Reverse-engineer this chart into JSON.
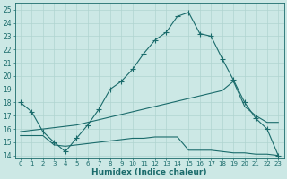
{
  "xlabel": "Humidex (Indice chaleur)",
  "xlim": [
    -0.5,
    23.5
  ],
  "ylim": [
    13.8,
    25.5
  ],
  "yticks": [
    14,
    15,
    16,
    17,
    18,
    19,
    20,
    21,
    22,
    23,
    24,
    25
  ],
  "xticks": [
    0,
    1,
    2,
    3,
    4,
    5,
    6,
    7,
    8,
    9,
    10,
    11,
    12,
    13,
    14,
    15,
    16,
    17,
    18,
    19,
    20,
    21,
    22,
    23
  ],
  "bg_color": "#cce8e5",
  "line_color": "#1a6b6b",
  "line1_x": [
    0,
    1,
    2,
    3,
    4,
    5,
    6,
    7,
    8,
    9,
    10,
    11,
    12,
    13,
    14,
    15,
    16,
    17,
    18,
    19,
    20,
    21,
    22,
    23
  ],
  "line1_y": [
    18.0,
    17.3,
    15.8,
    15.0,
    14.3,
    15.3,
    16.3,
    17.5,
    19.0,
    19.6,
    20.5,
    21.7,
    22.7,
    23.3,
    24.5,
    24.8,
    23.2,
    23.0,
    21.3,
    19.7,
    18.0,
    16.8,
    16.0,
    14.0
  ],
  "line2_x": [
    0,
    1,
    2,
    3,
    4,
    5,
    6,
    7,
    8,
    9,
    10,
    11,
    12,
    13,
    14,
    15,
    16,
    17,
    18,
    19,
    20,
    21,
    22,
    23
  ],
  "line2_y": [
    15.8,
    15.9,
    16.0,
    16.1,
    16.2,
    16.3,
    16.5,
    16.7,
    16.9,
    17.1,
    17.3,
    17.5,
    17.7,
    17.9,
    18.1,
    18.3,
    18.5,
    18.7,
    18.9,
    19.6,
    17.7,
    17.0,
    16.5,
    16.5
  ],
  "line3_x": [
    0,
    1,
    2,
    3,
    4,
    5,
    6,
    7,
    8,
    9,
    10,
    11,
    12,
    13,
    14,
    15,
    16,
    17,
    18,
    19,
    20,
    21,
    22,
    23
  ],
  "line3_y": [
    15.5,
    15.5,
    15.5,
    14.8,
    14.7,
    14.8,
    14.9,
    15.0,
    15.1,
    15.2,
    15.3,
    15.3,
    15.4,
    15.4,
    15.4,
    14.4,
    14.4,
    14.4,
    14.3,
    14.2,
    14.2,
    14.1,
    14.1,
    14.0
  ]
}
